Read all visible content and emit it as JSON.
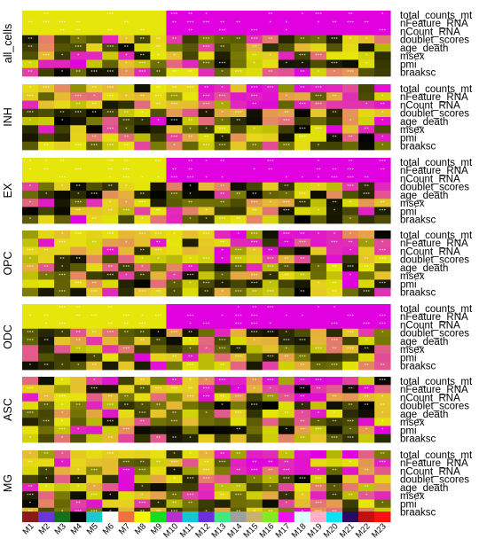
{
  "chart_data": {
    "type": "heatmap",
    "color_scale": {
      "low": "#000000",
      "mid": "#e6e60a",
      "high": "#e000e0"
    },
    "row_labels": [
      "total_counts_mt",
      "nFeature_RNA",
      "nCount_RNA",
      "doublet_scores",
      "age_death",
      "msex",
      "pmi",
      "braaksc"
    ],
    "columns": [
      "M1",
      "M2",
      "M3",
      "M4",
      "M5",
      "M6",
      "M7",
      "M8",
      "M9",
      "M10",
      "M11",
      "M12",
      "M13",
      "M14",
      "M15",
      "M16",
      "M17",
      "M18",
      "M19",
      "M20",
      "M21",
      "M22",
      "M23"
    ],
    "column_colors": [
      "#8b1a1a",
      "#6a35d9",
      "#1b6e1b",
      "#000000",
      "#1cc8c8",
      "#ffffff",
      "#f07040",
      "#f5f500",
      "#10e020",
      "#b530d0",
      "#10c8d0",
      "#6a30e0",
      "#40e880",
      "#a0a0a0",
      "#c8b070",
      "#88e820",
      "#f010f0",
      "#d8ffff",
      "#ffb0c8",
      "#10e0f0",
      "#2a0a60",
      "#c01010",
      "#ff1010"
    ],
    "panels": [
      {
        "name": "all_cells",
        "mode": "split",
        "split_at": 9
      },
      {
        "name": "INH",
        "mode": "mixed",
        "split_at": 11
      },
      {
        "name": "EX",
        "mode": "split",
        "split_at": 9
      },
      {
        "name": "OPC",
        "mode": "mixed",
        "split_at": 12
      },
      {
        "name": "ODC",
        "mode": "split",
        "split_at": 9
      },
      {
        "name": "ASC",
        "mode": "mixed",
        "split_at": 11
      },
      {
        "name": "MG",
        "mode": "mixed",
        "split_at": 12
      }
    ],
    "significance_symbols": [
      "*",
      "**",
      "***"
    ]
  }
}
